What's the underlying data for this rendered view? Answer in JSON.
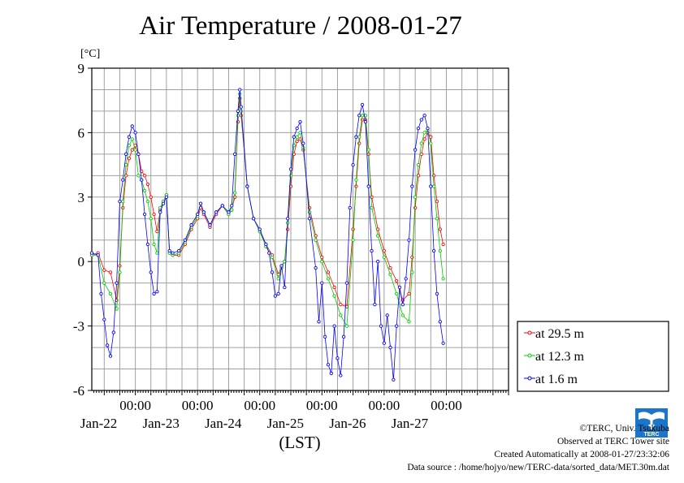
{
  "chart_data": {
    "type": "line",
    "title": "Air Temperature / 2008-01-27",
    "ylabel": "[°C]",
    "xlabel": "(LST)",
    "ylim": [
      -6,
      9
    ],
    "yticks": [
      "9",
      "6",
      "3",
      "0",
      "-3",
      "-6"
    ],
    "xlim_days": [
      -0.7,
      6.0
    ],
    "x_tick_time_label": "00:00",
    "x_day_labels": [
      "Jan-22",
      "Jan-23",
      "Jan-24",
      "Jan-25",
      "Jan-26",
      "Jan-27"
    ],
    "grid": true,
    "legend_position": "bottom-right",
    "series": [
      {
        "name": "at 29.5 m",
        "color": "#ff0000",
        "points": [
          [
            -0.7,
            0.3
          ],
          [
            -0.6,
            0.4
          ],
          [
            -0.5,
            -0.4
          ],
          [
            -0.4,
            -0.5
          ],
          [
            -0.3,
            -1.8
          ],
          [
            -0.25,
            -0.2
          ],
          [
            -0.2,
            2.5
          ],
          [
            -0.15,
            4.0
          ],
          [
            -0.1,
            4.8
          ],
          [
            -0.05,
            5.2
          ],
          [
            0,
            5.4
          ],
          [
            0.05,
            5.0
          ],
          [
            0.1,
            4.2
          ],
          [
            0.15,
            4.0
          ],
          [
            0.2,
            3.6
          ],
          [
            0.25,
            3.0
          ],
          [
            0.3,
            2.2
          ],
          [
            0.35,
            1.4
          ],
          [
            0.4,
            2.4
          ],
          [
            0.45,
            2.8
          ],
          [
            0.5,
            3.1
          ],
          [
            0.55,
            0.4
          ],
          [
            0.6,
            0.3
          ],
          [
            0.7,
            0.3
          ],
          [
            0.8,
            0.8
          ],
          [
            0.9,
            1.5
          ],
          [
            1.0,
            2.0
          ],
          [
            1.05,
            2.5
          ],
          [
            1.1,
            2.2
          ],
          [
            1.2,
            1.6
          ],
          [
            1.3,
            2.2
          ],
          [
            1.4,
            2.6
          ],
          [
            1.5,
            2.2
          ],
          [
            1.55,
            2.4
          ],
          [
            1.6,
            3.0
          ],
          [
            1.65,
            6.5
          ],
          [
            1.68,
            7.6
          ],
          [
            1.7,
            6.8
          ],
          [
            1.8,
            3.5
          ],
          [
            1.9,
            2.0
          ],
          [
            2.0,
            1.4
          ],
          [
            2.1,
            0.8
          ],
          [
            2.2,
            0.3
          ],
          [
            2.3,
            -0.6
          ],
          [
            2.35,
            -0.2
          ],
          [
            2.4,
            0.0
          ],
          [
            2.45,
            1.5
          ],
          [
            2.5,
            3.5
          ],
          [
            2.55,
            5.0
          ],
          [
            2.6,
            5.6
          ],
          [
            2.65,
            5.7
          ],
          [
            2.7,
            5.2
          ],
          [
            2.8,
            2.5
          ],
          [
            2.9,
            1.2
          ],
          [
            3.0,
            0.2
          ],
          [
            3.1,
            -0.5
          ],
          [
            3.2,
            -1.2
          ],
          [
            3.3,
            -2.0
          ],
          [
            3.4,
            -2.1
          ],
          [
            3.5,
            1.5
          ],
          [
            3.55,
            3.5
          ],
          [
            3.6,
            5.5
          ],
          [
            3.65,
            6.6
          ],
          [
            3.7,
            6.6
          ],
          [
            3.75,
            5.0
          ],
          [
            3.8,
            3.0
          ],
          [
            3.9,
            1.5
          ],
          [
            4.0,
            0.5
          ],
          [
            4.1,
            -0.3
          ],
          [
            4.2,
            -0.9
          ],
          [
            4.3,
            -1.8
          ],
          [
            4.4,
            -1.5
          ],
          [
            4.45,
            0.2
          ],
          [
            4.5,
            2.5
          ],
          [
            4.55,
            4.0
          ],
          [
            4.6,
            5.0
          ],
          [
            4.65,
            5.7
          ],
          [
            4.7,
            6.0
          ],
          [
            4.75,
            5.8
          ],
          [
            4.8,
            4.0
          ],
          [
            4.85,
            2.8
          ],
          [
            4.9,
            1.5
          ],
          [
            4.95,
            0.8
          ]
        ]
      },
      {
        "name": "at 12.3 m",
        "color": "#00cc00",
        "points": [
          [
            -0.7,
            0.3
          ],
          [
            -0.6,
            0.3
          ],
          [
            -0.5,
            -1.0
          ],
          [
            -0.4,
            -1.5
          ],
          [
            -0.3,
            -2.2
          ],
          [
            -0.25,
            -0.5
          ],
          [
            -0.2,
            2.8
          ],
          [
            -0.15,
            4.5
          ],
          [
            -0.1,
            5.4
          ],
          [
            -0.05,
            5.7
          ],
          [
            0,
            5.2
          ],
          [
            0.05,
            4.0
          ],
          [
            0.1,
            3.8
          ],
          [
            0.15,
            3.3
          ],
          [
            0.2,
            2.8
          ],
          [
            0.25,
            2.0
          ],
          [
            0.3,
            0.8
          ],
          [
            0.35,
            0.4
          ],
          [
            0.4,
            2.5
          ],
          [
            0.45,
            2.8
          ],
          [
            0.5,
            3.1
          ],
          [
            0.55,
            0.4
          ],
          [
            0.6,
            0.3
          ],
          [
            0.7,
            0.4
          ],
          [
            0.8,
            0.9
          ],
          [
            0.9,
            1.6
          ],
          [
            1.0,
            2.1
          ],
          [
            1.05,
            2.7
          ],
          [
            1.1,
            2.3
          ],
          [
            1.2,
            1.7
          ],
          [
            1.3,
            2.3
          ],
          [
            1.4,
            2.6
          ],
          [
            1.5,
            2.2
          ],
          [
            1.55,
            2.4
          ],
          [
            1.6,
            3.2
          ],
          [
            1.65,
            6.8
          ],
          [
            1.68,
            7.8
          ],
          [
            1.7,
            7.0
          ],
          [
            1.8,
            3.5
          ],
          [
            1.9,
            2.0
          ],
          [
            2.0,
            1.4
          ],
          [
            2.1,
            0.7
          ],
          [
            2.2,
            0.2
          ],
          [
            2.3,
            -0.8
          ],
          [
            2.35,
            -0.3
          ],
          [
            2.4,
            0.0
          ],
          [
            2.45,
            1.8
          ],
          [
            2.5,
            4.0
          ],
          [
            2.55,
            5.4
          ],
          [
            2.6,
            5.8
          ],
          [
            2.65,
            6.0
          ],
          [
            2.7,
            5.3
          ],
          [
            2.8,
            2.3
          ],
          [
            2.9,
            1.0
          ],
          [
            3.0,
            0.0
          ],
          [
            3.1,
            -0.8
          ],
          [
            3.2,
            -1.6
          ],
          [
            3.3,
            -2.5
          ],
          [
            3.4,
            -3.0
          ],
          [
            3.5,
            1.0
          ],
          [
            3.55,
            3.8
          ],
          [
            3.6,
            5.8
          ],
          [
            3.65,
            6.8
          ],
          [
            3.7,
            6.8
          ],
          [
            3.75,
            5.2
          ],
          [
            3.8,
            2.5
          ],
          [
            3.9,
            1.2
          ],
          [
            4.0,
            0.2
          ],
          [
            4.1,
            -0.6
          ],
          [
            4.2,
            -1.5
          ],
          [
            4.3,
            -2.5
          ],
          [
            4.4,
            -2.8
          ],
          [
            4.45,
            -0.5
          ],
          [
            4.5,
            3.0
          ],
          [
            4.55,
            4.5
          ],
          [
            4.6,
            5.5
          ],
          [
            4.65,
            6.0
          ],
          [
            4.7,
            6.1
          ],
          [
            4.75,
            5.5
          ],
          [
            4.8,
            3.5
          ],
          [
            4.85,
            2.0
          ],
          [
            4.9,
            0.5
          ],
          [
            4.95,
            -0.8
          ]
        ]
      },
      {
        "name": "at 1.6 m",
        "color": "#0000ff",
        "points": [
          [
            -0.7,
            0.4
          ],
          [
            -0.6,
            0.3
          ],
          [
            -0.55,
            -1.5
          ],
          [
            -0.5,
            -2.7
          ],
          [
            -0.45,
            -3.9
          ],
          [
            -0.4,
            -4.4
          ],
          [
            -0.35,
            -3.3
          ],
          [
            -0.3,
            -1.0
          ],
          [
            -0.25,
            2.8
          ],
          [
            -0.2,
            3.8
          ],
          [
            -0.15,
            5.0
          ],
          [
            -0.1,
            5.8
          ],
          [
            -0.05,
            6.3
          ],
          [
            0,
            6.0
          ],
          [
            0.05,
            5.0
          ],
          [
            0.1,
            3.8
          ],
          [
            0.15,
            2.2
          ],
          [
            0.2,
            0.8
          ],
          [
            0.25,
            -0.5
          ],
          [
            0.3,
            -1.5
          ],
          [
            0.35,
            -1.4
          ],
          [
            0.4,
            2.3
          ],
          [
            0.45,
            2.7
          ],
          [
            0.5,
            3.0
          ],
          [
            0.55,
            0.5
          ],
          [
            0.6,
            0.4
          ],
          [
            0.7,
            0.5
          ],
          [
            0.8,
            1.0
          ],
          [
            0.9,
            1.7
          ],
          [
            1.0,
            2.2
          ],
          [
            1.05,
            2.7
          ],
          [
            1.1,
            2.3
          ],
          [
            1.2,
            1.7
          ],
          [
            1.3,
            2.3
          ],
          [
            1.4,
            2.6
          ],
          [
            1.5,
            2.3
          ],
          [
            1.55,
            2.6
          ],
          [
            1.6,
            5.0
          ],
          [
            1.65,
            7.0
          ],
          [
            1.68,
            8.0
          ],
          [
            1.7,
            7.2
          ],
          [
            1.8,
            3.5
          ],
          [
            1.9,
            2.0
          ],
          [
            2.0,
            1.5
          ],
          [
            2.1,
            0.8
          ],
          [
            2.15,
            0.4
          ],
          [
            2.2,
            -0.5
          ],
          [
            2.25,
            -1.6
          ],
          [
            2.3,
            -1.5
          ],
          [
            2.35,
            -0.2
          ],
          [
            2.4,
            -1.2
          ],
          [
            2.45,
            2.0
          ],
          [
            2.5,
            4.3
          ],
          [
            2.55,
            5.8
          ],
          [
            2.6,
            6.2
          ],
          [
            2.65,
            6.5
          ],
          [
            2.7,
            5.5
          ],
          [
            2.8,
            2.0
          ],
          [
            2.9,
            -0.3
          ],
          [
            2.95,
            -2.8
          ],
          [
            3.0,
            -1.0
          ],
          [
            3.05,
            -3.5
          ],
          [
            3.1,
            -4.8
          ],
          [
            3.15,
            -5.2
          ],
          [
            3.2,
            -3.0
          ],
          [
            3.25,
            -4.5
          ],
          [
            3.3,
            -5.3
          ],
          [
            3.35,
            -3.5
          ],
          [
            3.4,
            -1.0
          ],
          [
            3.45,
            2.5
          ],
          [
            3.5,
            4.5
          ],
          [
            3.55,
            5.8
          ],
          [
            3.6,
            6.8
          ],
          [
            3.65,
            7.3
          ],
          [
            3.7,
            6.5
          ],
          [
            3.75,
            3.5
          ],
          [
            3.8,
            0.5
          ],
          [
            3.85,
            -2.0
          ],
          [
            3.9,
            0.0
          ],
          [
            3.95,
            -3.0
          ],
          [
            4.0,
            -3.8
          ],
          [
            4.05,
            -2.5
          ],
          [
            4.1,
            -4.0
          ],
          [
            4.15,
            -5.5
          ],
          [
            4.2,
            -3.0
          ],
          [
            4.25,
            -1.2
          ],
          [
            4.3,
            -2.0
          ],
          [
            4.35,
            -0.8
          ],
          [
            4.4,
            1.0
          ],
          [
            4.45,
            3.5
          ],
          [
            4.5,
            5.2
          ],
          [
            4.55,
            6.2
          ],
          [
            4.6,
            6.6
          ],
          [
            4.65,
            6.8
          ],
          [
            4.7,
            6.2
          ],
          [
            4.75,
            3.5
          ],
          [
            4.8,
            0.5
          ],
          [
            4.85,
            -1.5
          ],
          [
            4.9,
            -2.8
          ],
          [
            4.95,
            -3.8
          ]
        ]
      }
    ]
  },
  "credits": {
    "copyright": "©TERC, Univ. Tsukuba",
    "site": "Observed at TERC Tower site",
    "created": "Created Automatically at 2008-01-27/23:32:06",
    "source": "Data source : /home/hojyo/new/TERC-data/sorted_data/MET.30m.dat"
  },
  "logo": {
    "text": "TERC",
    "color": "#1b75c9"
  }
}
